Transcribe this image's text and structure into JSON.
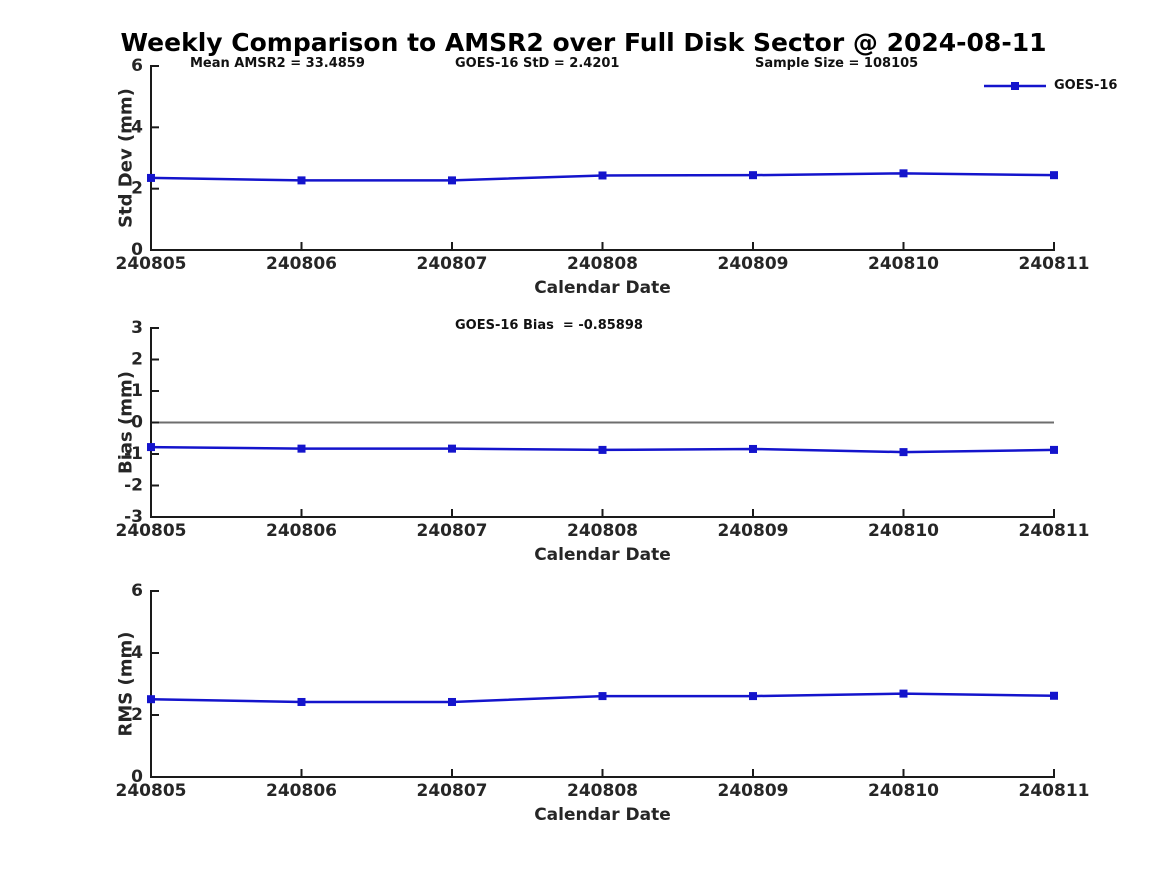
{
  "chart_data": {
    "type": "line",
    "title": "Weekly Comparison to AMSR2 over Full Disk Sector @ 2024-08-11",
    "legend": "GOES-16",
    "legend_position": "top-right",
    "annotations": [
      "Mean AMSR2 = 33.4859",
      "GOES-16 StD = 2.4201",
      "Sample Size = 108105"
    ],
    "categories": [
      "240805",
      "240806",
      "240807",
      "240808",
      "240809",
      "240810",
      "240811"
    ],
    "panels": [
      {
        "name": "std-dev",
        "ylabel": "Std Dev (mm)",
        "xlabel": "Calendar Date",
        "ylim": [
          0,
          6
        ],
        "yticks": [
          0,
          2,
          4,
          6
        ],
        "values": [
          2.35,
          2.27,
          2.27,
          2.43,
          2.44,
          2.5,
          2.44
        ],
        "annotation": "",
        "zero_line": false
      },
      {
        "name": "bias",
        "ylabel": "Bias (mm)",
        "xlabel": "Calendar Date",
        "ylim": [
          -3,
          3
        ],
        "yticks": [
          -3,
          -2,
          -1,
          0,
          1,
          2,
          3
        ],
        "values": [
          -0.78,
          -0.83,
          -0.83,
          -0.87,
          -0.84,
          -0.94,
          -0.87
        ],
        "annotation": "GOES-16 Bias  = -0.85898",
        "zero_line": true
      },
      {
        "name": "rms",
        "ylabel": "RMS (mm)",
        "xlabel": "Calendar Date",
        "ylim": [
          0,
          6
        ],
        "yticks": [
          0,
          2,
          4,
          6
        ],
        "values": [
          2.51,
          2.42,
          2.42,
          2.61,
          2.61,
          2.69,
          2.62
        ],
        "annotation": "",
        "zero_line": false
      }
    ],
    "grid": false
  },
  "colors": {
    "line": "#1414cc",
    "axis": "#1a1a1a",
    "tick_text": "#262626",
    "zero_line": "#6e6e6e"
  }
}
